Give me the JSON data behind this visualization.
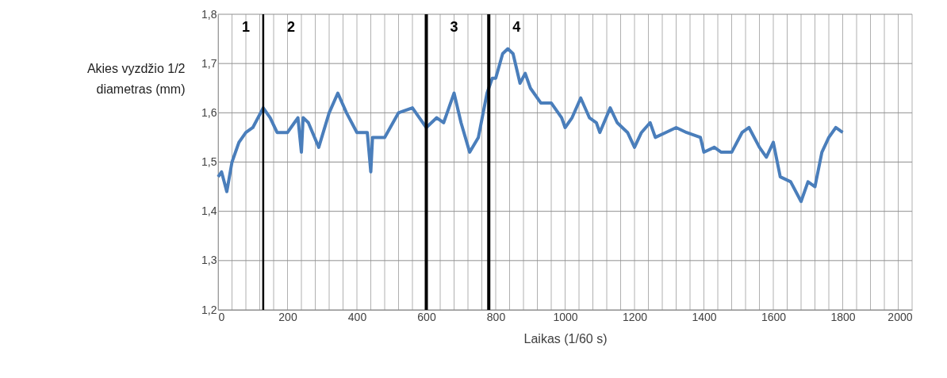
{
  "chart_data": {
    "type": "line",
    "xlabel": "Laikas (1/60 s)",
    "ylabel": "Akies vyzdžio 1/2 diametras (mm)",
    "x": [
      0,
      10,
      25,
      40,
      60,
      80,
      100,
      130,
      150,
      170,
      200,
      220,
      230,
      240,
      245,
      260,
      290,
      320,
      345,
      370,
      400,
      430,
      440,
      445,
      480,
      520,
      560,
      580,
      600,
      630,
      650,
      660,
      680,
      700,
      725,
      750,
      775,
      790,
      800,
      820,
      835,
      850,
      870,
      885,
      900,
      930,
      960,
      990,
      1000,
      1020,
      1045,
      1070,
      1090,
      1100,
      1130,
      1150,
      1180,
      1200,
      1220,
      1245,
      1260,
      1290,
      1320,
      1350,
      1390,
      1400,
      1430,
      1450,
      1480,
      1510,
      1530,
      1560,
      1580,
      1600,
      1620,
      1650,
      1680,
      1700,
      1720,
      1740,
      1760,
      1780,
      1800
    ],
    "series": [
      {
        "color": "#4a7ebb",
        "values": [
          1.47,
          1.48,
          1.44,
          1.5,
          1.54,
          1.56,
          1.57,
          1.61,
          1.59,
          1.56,
          1.56,
          1.58,
          1.59,
          1.52,
          1.59,
          1.58,
          1.53,
          1.6,
          1.64,
          1.6,
          1.56,
          1.56,
          1.48,
          1.55,
          1.55,
          1.6,
          1.61,
          1.59,
          1.57,
          1.59,
          1.58,
          1.6,
          1.64,
          1.58,
          1.52,
          1.55,
          1.64,
          1.67,
          1.67,
          1.72,
          1.73,
          1.72,
          1.66,
          1.68,
          1.65,
          1.62,
          1.62,
          1.59,
          1.57,
          1.59,
          1.63,
          1.59,
          1.58,
          1.56,
          1.61,
          1.58,
          1.56,
          1.53,
          1.56,
          1.58,
          1.55,
          1.56,
          1.57,
          1.56,
          1.55,
          1.52,
          1.53,
          1.52,
          1.52,
          1.56,
          1.57,
          1.53,
          1.51,
          1.54,
          1.47,
          1.46,
          1.42,
          1.46,
          1.45,
          1.52,
          1.55,
          1.57,
          1.56
        ]
      }
    ],
    "xlim": [
      0,
      2000
    ],
    "xticks": [
      0,
      {
        "value": 40,
        "label": null
      },
      {
        "value": 80,
        "label": null
      },
      {
        "value": 120,
        "label": null
      },
      {
        "value": 160,
        "label": null
      },
      200,
      {
        "value": 240,
        "label": null
      },
      {
        "value": 280,
        "label": null
      },
      {
        "value": 320,
        "label": null
      },
      {
        "value": 360,
        "label": null
      },
      400,
      {
        "value": 440,
        "label": null
      },
      {
        "value": 480,
        "label": null
      },
      {
        "value": 520,
        "label": null
      },
      {
        "value": 560,
        "label": null
      },
      600,
      {
        "value": 640,
        "label": null
      },
      {
        "value": 680,
        "label": null
      },
      {
        "value": 720,
        "label": null
      },
      {
        "value": 760,
        "label": null
      },
      800,
      {
        "value": 840,
        "label": null
      },
      {
        "value": 880,
        "label": null
      },
      {
        "value": 920,
        "label": null
      },
      {
        "value": 960,
        "label": null
      },
      1000,
      {
        "value": 1040,
        "label": null
      },
      {
        "value": 1080,
        "label": null
      },
      {
        "value": 1120,
        "label": null
      },
      {
        "value": 1160,
        "label": null
      },
      1200,
      {
        "value": 1240,
        "label": null
      },
      {
        "value": 1280,
        "label": null
      },
      {
        "value": 1320,
        "label": null
      },
      {
        "value": 1360,
        "label": null
      },
      1400,
      {
        "value": 1440,
        "label": null
      },
      {
        "value": 1480,
        "label": null
      },
      {
        "value": 1520,
        "label": null
      },
      {
        "value": 1560,
        "label": null
      },
      1600,
      {
        "value": 1640,
        "label": null
      },
      {
        "value": 1680,
        "label": null
      },
      {
        "value": 1720,
        "label": null
      },
      {
        "value": 1760,
        "label": null
      },
      1800,
      {
        "value": 1840,
        "label": null
      },
      {
        "value": 1880,
        "label": null
      },
      {
        "value": 1920,
        "label": null
      },
      {
        "value": 1960,
        "label": null
      },
      2000
    ],
    "ylim": [
      1.2,
      1.8
    ],
    "yticks": [
      {
        "value": 1.2,
        "label": "1,2"
      },
      {
        "value": 1.3,
        "label": "1,3"
      },
      {
        "value": 1.4,
        "label": "1,4"
      },
      {
        "value": 1.5,
        "label": "1,5"
      },
      {
        "value": 1.6,
        "label": "1,6"
      },
      {
        "value": 1.7,
        "label": "1,7"
      },
      {
        "value": 1.8,
        "label": "1,8"
      }
    ],
    "grid": true,
    "marker": "none",
    "line_style": "solid",
    "ref_lines": [
      {
        "axis": "x",
        "value": 130,
        "color": "#000000"
      },
      {
        "axis": "x",
        "value": 600,
        "color": "#000000"
      },
      {
        "axis": "x",
        "value": 780,
        "color": "#000000"
      }
    ],
    "annotations": [
      "1",
      "2",
      "3",
      "4"
    ]
  }
}
